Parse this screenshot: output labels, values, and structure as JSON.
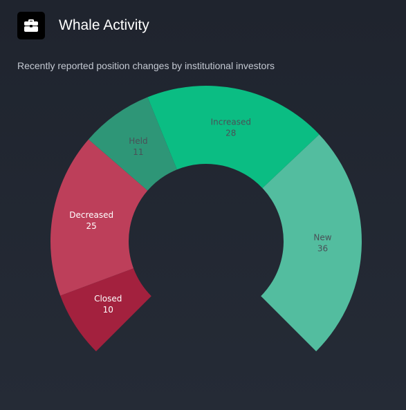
{
  "header": {
    "icon": "briefcase-icon",
    "title": "Whale Activity",
    "subtitle": "Recently reported position changes by institutional investors"
  },
  "chart_data": {
    "type": "pie",
    "variant": "gauge-donut",
    "categories": [
      "Closed",
      "Decreased",
      "Held",
      "Increased",
      "New"
    ],
    "values": [
      10,
      25,
      11,
      28,
      36
    ],
    "colors": [
      "#a3213e",
      "#bd3f5a",
      "#2e9677",
      "#0bbd83",
      "#53bd9f"
    ],
    "label_colors": [
      "#ffffff",
      "#ffffff",
      "#4a4f57",
      "#4a4f57",
      "#4a4f57"
    ],
    "title": "",
    "legend": "none"
  }
}
